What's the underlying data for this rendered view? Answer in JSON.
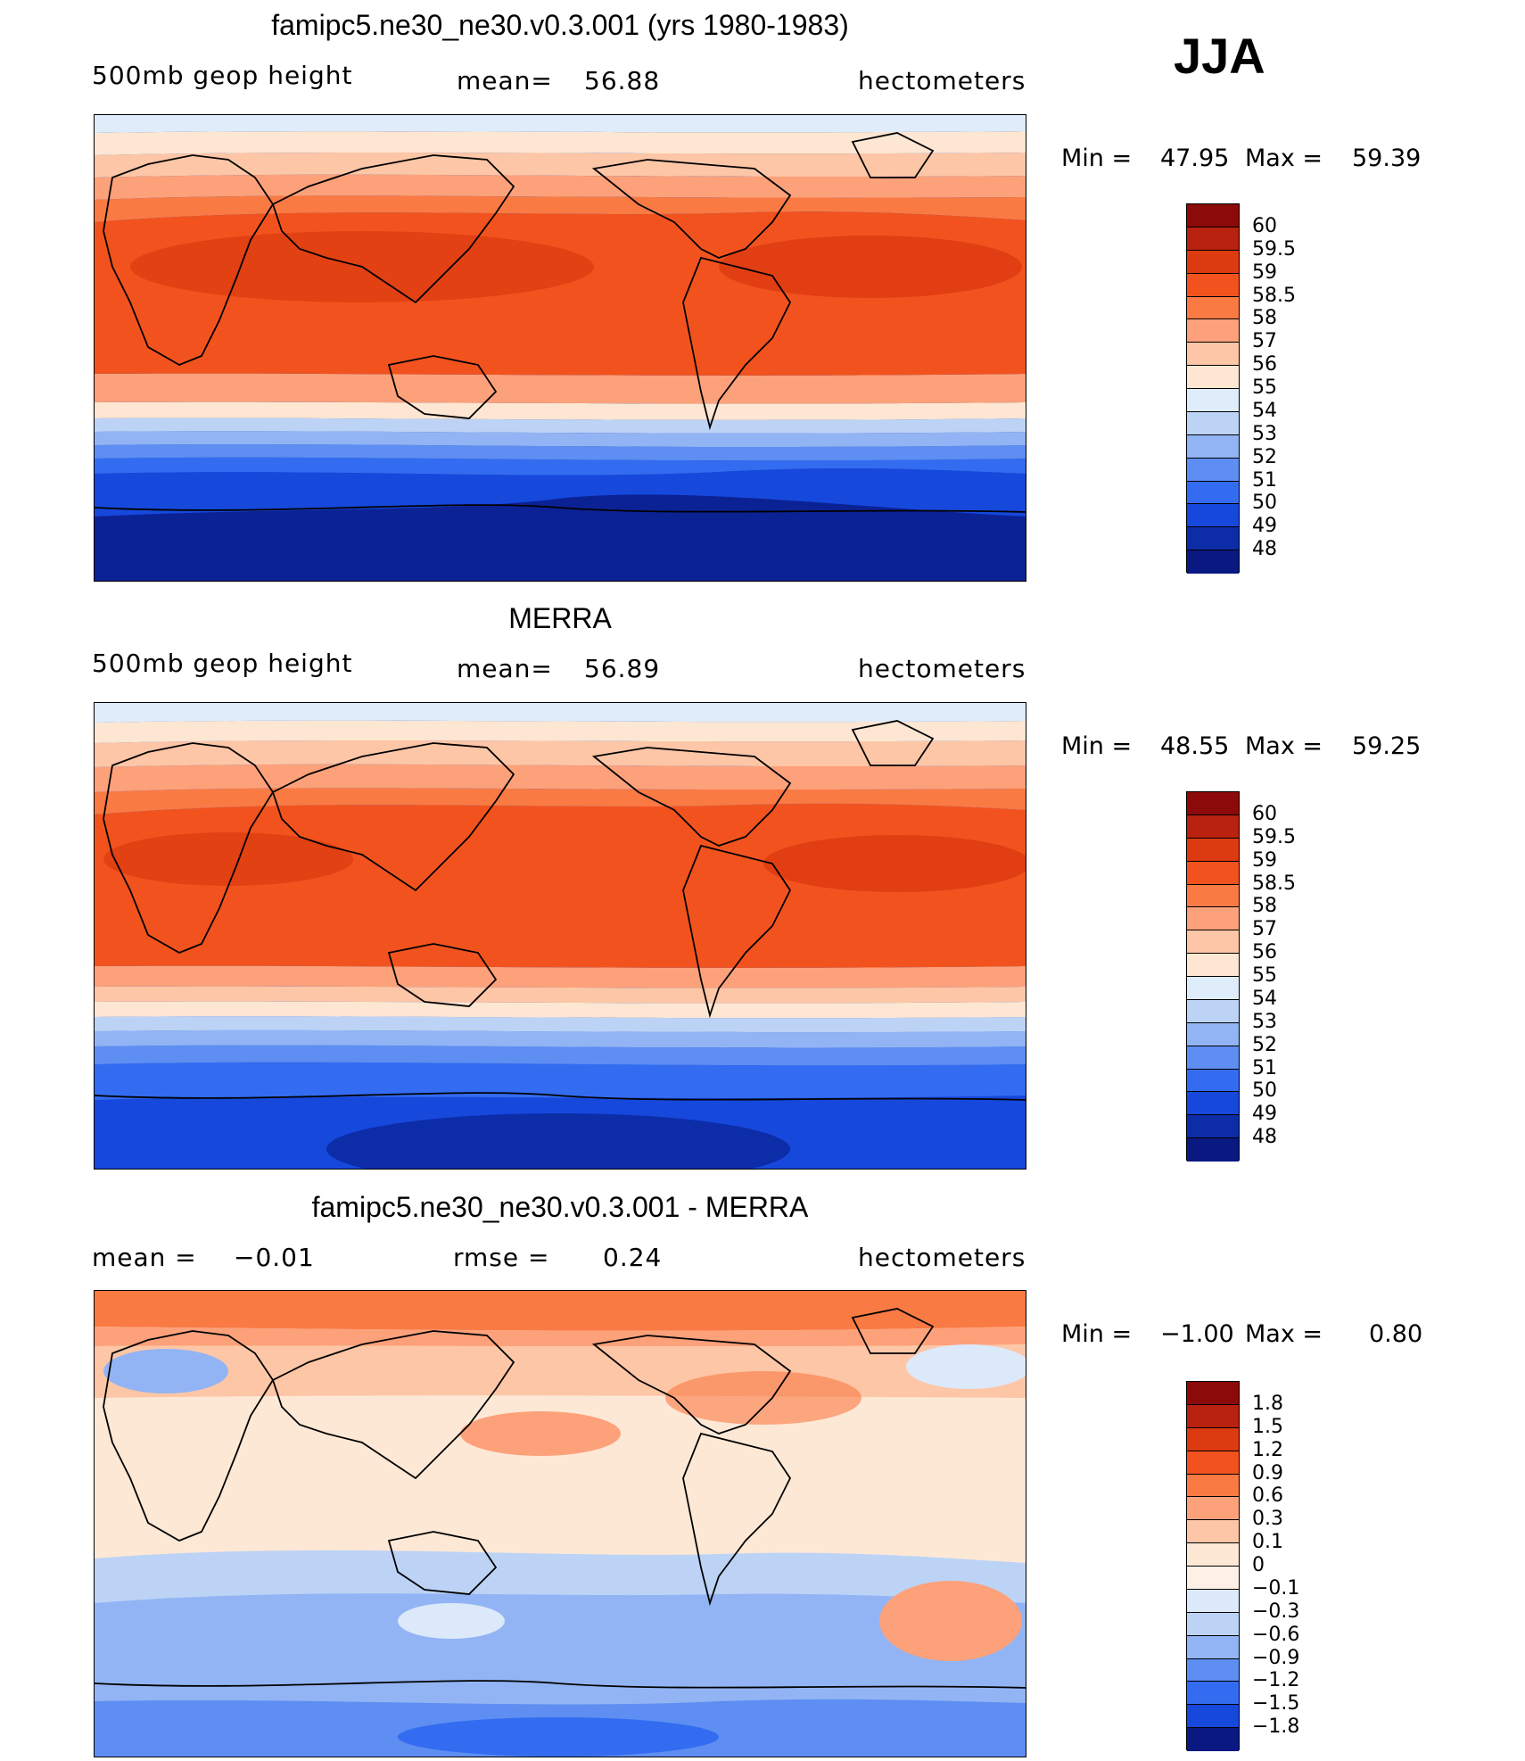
{
  "season": "JJA",
  "colors": {
    "land_outline": "#000000",
    "frame": "#000000"
  },
  "chart_data": [
    {
      "type": "heatmap",
      "title": "famipc5.ne30_ne30.v0.3.001 (yrs 1980-1983)",
      "variable": "500mb geop height",
      "mean_label": "mean=",
      "mean_value": "56.88",
      "units": "hectometers",
      "min_label": "Min =",
      "min_value": "47.95",
      "max_label": "Max =",
      "max_value": "59.39",
      "legend_levels": [
        "60",
        "59.5",
        "59",
        "58.5",
        "58",
        "57",
        "56",
        "55",
        "54",
        "53",
        "52",
        "51",
        "50",
        "49",
        "48"
      ],
      "legend_colors": [
        "#8c0a0a",
        "#b8220e",
        "#dc3a10",
        "#f2531e",
        "#fa7a44",
        "#fca17a",
        "#fdc6a6",
        "#fde6d2",
        "#dfecfa",
        "#bcd3f6",
        "#92b4f4",
        "#5e8ef2",
        "#336cf0",
        "#1648dc",
        "#0c2ca8",
        "#0a1882"
      ]
    },
    {
      "type": "heatmap",
      "title": "MERRA",
      "variable": "500mb geop height",
      "mean_label": "mean=",
      "mean_value": "56.89",
      "units": "hectometers",
      "min_label": "Min =",
      "min_value": "48.55",
      "max_label": "Max =",
      "max_value": "59.25",
      "legend_levels": [
        "60",
        "59.5",
        "59",
        "58.5",
        "58",
        "57",
        "56",
        "55",
        "54",
        "53",
        "52",
        "51",
        "50",
        "49",
        "48"
      ],
      "legend_colors": [
        "#8c0a0a",
        "#b8220e",
        "#dc3a10",
        "#f2531e",
        "#fa7a44",
        "#fca17a",
        "#fdc6a6",
        "#fde6d2",
        "#dfecfa",
        "#bcd3f6",
        "#92b4f4",
        "#5e8ef2",
        "#336cf0",
        "#1648dc",
        "#0c2ca8",
        "#0a1882"
      ]
    },
    {
      "type": "heatmap",
      "title": "famipc5.ne30_ne30.v0.3.001 - MERRA",
      "mean_label": "mean =",
      "mean_value": "−0.01",
      "rmse_label": "rmse =",
      "rmse_value": "0.24",
      "units": "hectometers",
      "min_label": "Min =",
      "min_value": "−1.00",
      "max_label": "Max =",
      "max_value": "0.80",
      "legend_levels": [
        "1.8",
        "1.5",
        "1.2",
        "0.9",
        "0.6",
        "0.3",
        "0.1",
        "0",
        "−0.1",
        "−0.3",
        "−0.6",
        "−0.9",
        "−1.2",
        "−1.5",
        "−1.8"
      ],
      "legend_colors": [
        "#8c0a0a",
        "#b8220e",
        "#dc3a10",
        "#f2531e",
        "#fa7a44",
        "#fca17a",
        "#fdc6a6",
        "#fde8d6",
        "#fdf0e6",
        "#dce9fa",
        "#bcd3f6",
        "#92b4f4",
        "#5e8ef2",
        "#336cf0",
        "#1648dc",
        "#0a1882"
      ]
    }
  ]
}
